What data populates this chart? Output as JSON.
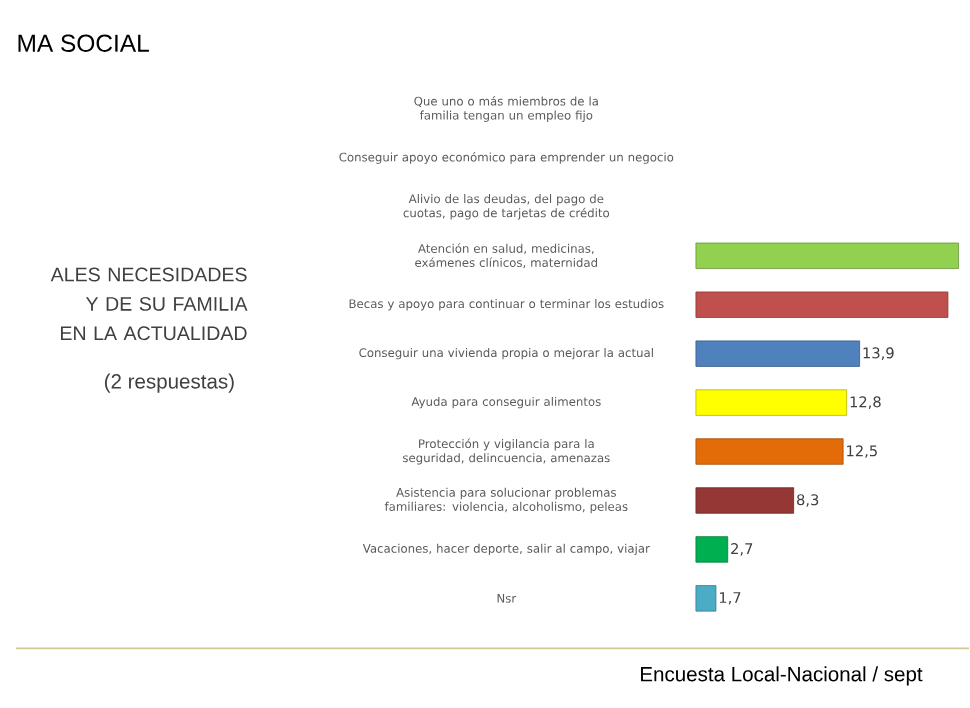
{
  "chart_data": {
    "type": "bar",
    "orientation": "horizontal",
    "title": "MA SOCIAL",
    "subtitle": "ALES NECESIDADES Y DE SU FAMILIA EN LA ACTUALIDAD",
    "categories": [
      "Que uno o más miembros de la familia tengan un empleo fijo",
      "Conseguir apoyo económico para emprender un negocio",
      "Alivio de las deudas, del pago de cuotas, pago de tarjetas de crédito",
      "Atención en salud, medicinas, exámenes clínicos, maternidad",
      "Becas y apoyo para continuar o terminar los estudios",
      "Conseguir una vivienda propia o mejorar la actual",
      "Ayuda para conseguir alimentos",
      "Protección y vigilancia para la seguridad, delincuencia, amenazas",
      "Asistencia para solucionar problemas familiares: violencia, alcoholismo, peleas",
      "Vacaciones, hacer deporte, salir al campo, viajar",
      "Nsr"
    ],
    "values": [
      null,
      null,
      null,
      22.3,
      21.4,
      13.9,
      12.8,
      12.5,
      8.3,
      2.7,
      1.7
    ],
    "value_labels": [
      null,
      null,
      null,
      null,
      null,
      "13,9",
      "12,8",
      "12,5",
      "8,3",
      "2,7",
      "1,7"
    ],
    "colors": [
      "#c00000",
      "#f79646",
      "#a5a5a5",
      "#92d050",
      "#c0504d",
      "#4f81bd",
      "#ffff00",
      "#e36c09",
      "#953735",
      "#00b050",
      "#4bacc6"
    ],
    "annotations": [
      "(2 respuestas)",
      "Encuesta Local-Nacional / sept"
    ]
  }
}
